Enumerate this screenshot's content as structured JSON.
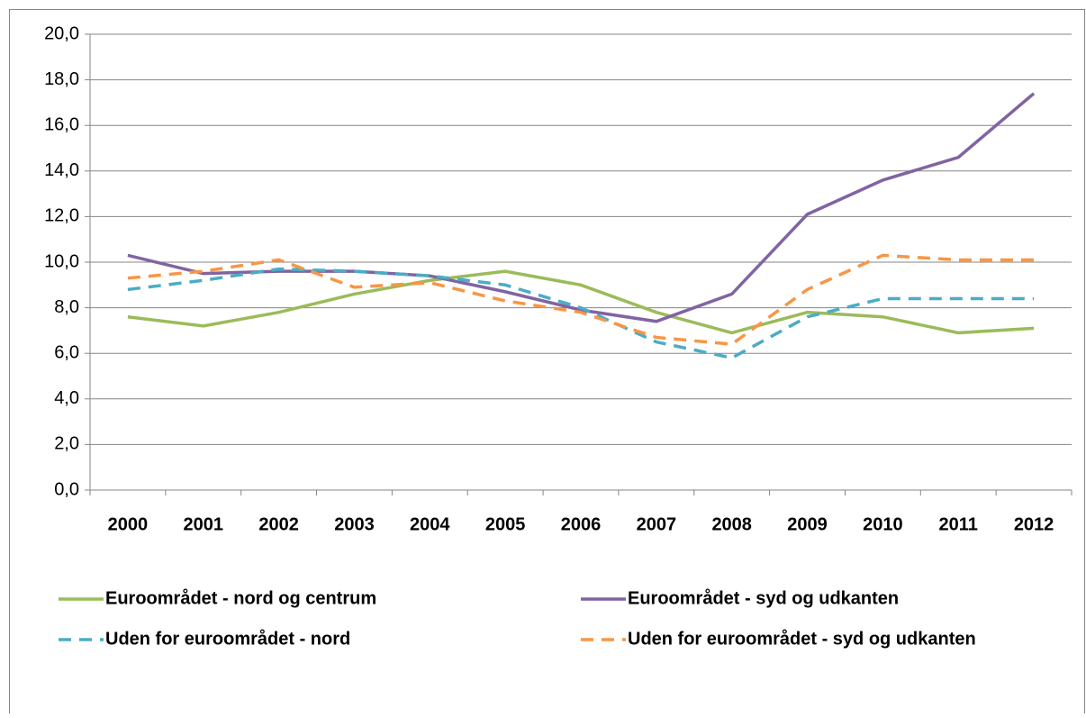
{
  "chart_data": {
    "type": "line",
    "categories": [
      "2000",
      "2001",
      "2002",
      "2003",
      "2004",
      "2005",
      "2006",
      "2007",
      "2008",
      "2009",
      "2010",
      "2011",
      "2012"
    ],
    "series": [
      {
        "name": "Euroområdet - nord og centrum",
        "color": "#9bbb59",
        "dashed": false,
        "values": [
          7.6,
          7.2,
          7.8,
          8.6,
          9.2,
          9.6,
          9.0,
          7.8,
          6.9,
          7.8,
          7.6,
          6.9,
          7.1
        ]
      },
      {
        "name": "Euroområdet - syd og udkanten",
        "color": "#8064a2",
        "dashed": false,
        "values": [
          10.3,
          9.5,
          9.6,
          9.6,
          9.4,
          8.7,
          7.9,
          7.4,
          8.6,
          12.1,
          13.6,
          14.6,
          17.4
        ]
      },
      {
        "name": "Uden for euroområdet - nord",
        "color": "#4bacc6",
        "dashed": true,
        "values": [
          8.8,
          9.2,
          9.7,
          9.6,
          9.4,
          9.0,
          8.0,
          6.5,
          5.8,
          7.6,
          8.4,
          8.4,
          8.4
        ]
      },
      {
        "name": "Uden for euroområdet - syd og udkanten",
        "color": "#f79646",
        "dashed": true,
        "values": [
          9.3,
          9.6,
          10.1,
          8.9,
          9.1,
          8.3,
          7.8,
          6.7,
          6.4,
          8.8,
          10.3,
          10.1,
          10.1
        ]
      }
    ],
    "ylim": [
      0,
      20
    ],
    "yticks": [
      {
        "value": 0,
        "label": "0,0"
      },
      {
        "value": 2,
        "label": "2,0"
      },
      {
        "value": 4,
        "label": "4,0"
      },
      {
        "value": 6,
        "label": "6,0"
      },
      {
        "value": 8,
        "label": "8,0"
      },
      {
        "value": 10,
        "label": "10,0"
      },
      {
        "value": 12,
        "label": "12,0"
      },
      {
        "value": 14,
        "label": "14,0"
      },
      {
        "value": 16,
        "label": "16,0"
      },
      {
        "value": 18,
        "label": "18,0"
      },
      {
        "value": 20,
        "label": "20,0"
      }
    ],
    "grid": true,
    "legend": "bottom"
  }
}
